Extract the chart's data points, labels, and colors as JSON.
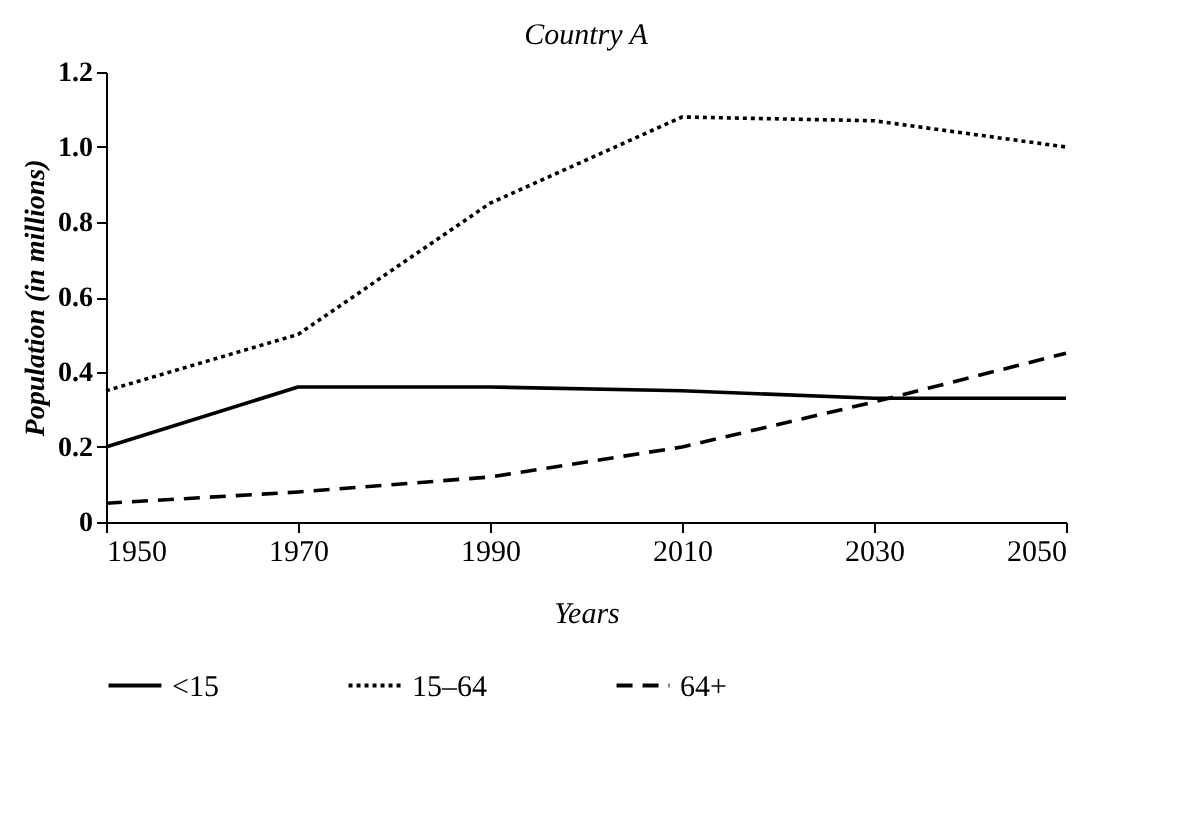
{
  "chart_data": {
    "type": "line",
    "title": "Country A",
    "xlabel": "Years",
    "ylabel": "Population (in millions)",
    "x": [
      1950,
      1970,
      1990,
      2010,
      2030,
      2050
    ],
    "xlim": [
      1950,
      2050
    ],
    "xticks": [
      1950,
      1970,
      1990,
      2010,
      2030,
      2050
    ],
    "ylim": [
      0,
      1.2
    ],
    "yticks": [
      0,
      0.2,
      0.4,
      0.6,
      0.8,
      {
        "value": 1,
        "label": "1.0"
      },
      1.2
    ],
    "grid": false,
    "legend": "bottom",
    "marker": "none",
    "series": [
      {
        "name": "<15",
        "color": "#000000",
        "line_style": "solid",
        "values": [
          0.2,
          0.36,
          0.36,
          0.35,
          0.33,
          0.33
        ]
      },
      {
        "name": "15–64",
        "color": "#000000",
        "line_style": "dotted",
        "values": [
          0.35,
          0.5,
          0.85,
          1.08,
          1.07,
          1.0
        ]
      },
      {
        "name": "64+",
        "color": "#000000",
        "line_style": "dashed",
        "values": [
          0.05,
          0.08,
          0.12,
          0.2,
          0.32,
          0.45
        ]
      }
    ]
  }
}
